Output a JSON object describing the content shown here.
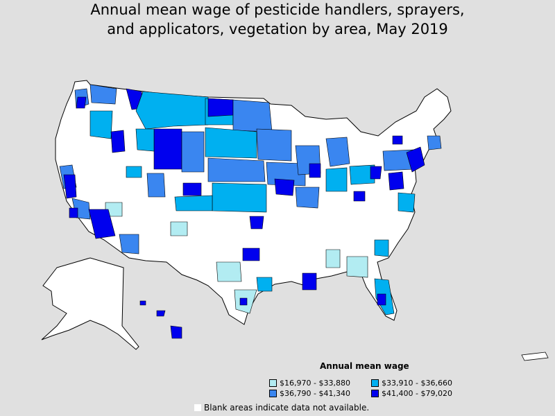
{
  "title": {
    "line1": "Annual mean wage of pesticide handlers, sprayers,",
    "line2": "and applicators, vegetation by area, May 2019"
  },
  "legend": {
    "title": "Annual mean wage",
    "items": [
      {
        "label": "$16,970 - $33,880",
        "color": "#b2ecf2"
      },
      {
        "label": "$33,910 - $36,660",
        "color": "#00b0f0"
      },
      {
        "label": "$36,790 - $41,340",
        "color": "#3a86f0"
      },
      {
        "label": "$41,400 - $79,020",
        "color": "#0000ee"
      }
    ]
  },
  "blank_note": "Blank areas indicate data not available.",
  "colors": {
    "background": "#e0e0e0",
    "no_data": "#ffffff",
    "border": "#000000"
  }
}
